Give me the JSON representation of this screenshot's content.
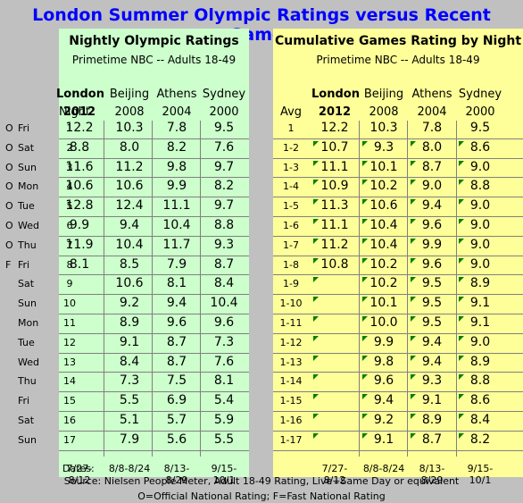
{
  "title": "London Summer Olympic Ratings versus Recent Games",
  "left_panel": {
    "title": "Nightly Olympic Ratings",
    "subtitle": "Primetime NBC -- Adults 18-49",
    "col_label": "Night",
    "headers": [
      {
        "line1": "London",
        "line2": "2012",
        "bold": true
      },
      {
        "line1": "Beijing",
        "line2": "2008",
        "bold": false
      },
      {
        "line1": "Athens",
        "line2": "2004",
        "bold": false
      },
      {
        "line1": "Sydney",
        "line2": "2000",
        "bold": false
      }
    ]
  },
  "right_panel": {
    "title": "Cumulative Games Rating by Night",
    "subtitle": "Primetime NBC -- Adults 18-49",
    "col_label": "Avg",
    "headers": [
      {
        "line1": "London",
        "line2": "2012",
        "bold": true
      },
      {
        "line1": "Beijing",
        "line2": "2008",
        "bold": false
      },
      {
        "line1": "Athens",
        "line2": "2004",
        "bold": false
      },
      {
        "line1": "Sydney",
        "line2": "2000",
        "bold": false
      }
    ]
  },
  "rows": [
    {
      "flag": "O",
      "day": "Fri",
      "night": "1",
      "n": [
        "12.2",
        "10.3",
        "7.8",
        "9.5"
      ],
      "avg": "1",
      "c": [
        "12.2",
        "10.3",
        "7.8",
        "9.5"
      ]
    },
    {
      "flag": "O",
      "day": "Sat",
      "night": "2",
      "n": [
        "8.8",
        "8.0",
        "8.2",
        "7.6"
      ],
      "avg": "1-2",
      "c": [
        "10.7",
        "9.3",
        "8.0",
        "8.6"
      ]
    },
    {
      "flag": "O",
      "day": "Sun",
      "night": "3",
      "n": [
        "11.6",
        "11.2",
        "9.8",
        "9.7"
      ],
      "avg": "1-3",
      "c": [
        "11.1",
        "10.1",
        "8.7",
        "9.0"
      ]
    },
    {
      "flag": "O",
      "day": "Mon",
      "night": "4",
      "n": [
        "10.6",
        "10.6",
        "9.9",
        "8.2"
      ],
      "avg": "1-4",
      "c": [
        "10.9",
        "10.2",
        "9.0",
        "8.8"
      ]
    },
    {
      "flag": "O",
      "day": "Tue",
      "night": "5",
      "n": [
        "12.8",
        "12.4",
        "11.1",
        "9.7"
      ],
      "avg": "1-5",
      "c": [
        "11.3",
        "10.6",
        "9.4",
        "9.0"
      ]
    },
    {
      "flag": "O",
      "day": "Wed",
      "night": "6",
      "n": [
        "9.9",
        "9.4",
        "10.4",
        "8.8"
      ],
      "avg": "1-6",
      "c": [
        "11.1",
        "10.4",
        "9.6",
        "9.0"
      ]
    },
    {
      "flag": "O",
      "day": "Thu",
      "night": "7",
      "n": [
        "11.9",
        "10.4",
        "11.7",
        "9.3"
      ],
      "avg": "1-7",
      "c": [
        "11.2",
        "10.4",
        "9.9",
        "9.0"
      ]
    },
    {
      "flag": "F",
      "day": "Fri",
      "night": "8",
      "n": [
        "8.1",
        "8.5",
        "7.9",
        "8.7"
      ],
      "avg": "1-8",
      "c": [
        "10.8",
        "10.2",
        "9.6",
        "9.0"
      ]
    },
    {
      "flag": "",
      "day": "Sat",
      "night": "9",
      "n": [
        "",
        "10.6",
        "8.1",
        "8.4"
      ],
      "avg": "1-9",
      "c": [
        "",
        "10.2",
        "9.5",
        "8.9"
      ]
    },
    {
      "flag": "",
      "day": "Sun",
      "night": "10",
      "n": [
        "",
        "9.2",
        "9.4",
        "10.4"
      ],
      "avg": "1-10",
      "c": [
        "",
        "10.1",
        "9.5",
        "9.1"
      ]
    },
    {
      "flag": "",
      "day": "Mon",
      "night": "11",
      "n": [
        "",
        "8.9",
        "9.6",
        "9.6"
      ],
      "avg": "1-11",
      "c": [
        "",
        "10.0",
        "9.5",
        "9.1"
      ]
    },
    {
      "flag": "",
      "day": "Tue",
      "night": "12",
      "n": [
        "",
        "9.1",
        "8.7",
        "7.3"
      ],
      "avg": "1-12",
      "c": [
        "",
        "9.9",
        "9.4",
        "9.0"
      ]
    },
    {
      "flag": "",
      "day": "Wed",
      "night": "13",
      "n": [
        "",
        "8.4",
        "8.7",
        "7.6"
      ],
      "avg": "1-13",
      "c": [
        "",
        "9.8",
        "9.4",
        "8.9"
      ]
    },
    {
      "flag": "",
      "day": "Thu",
      "night": "14",
      "n": [
        "",
        "7.3",
        "7.5",
        "8.1"
      ],
      "avg": "1-14",
      "c": [
        "",
        "9.6",
        "9.3",
        "8.8"
      ]
    },
    {
      "flag": "",
      "day": "Fri",
      "night": "15",
      "n": [
        "",
        "5.5",
        "6.9",
        "5.4"
      ],
      "avg": "1-15",
      "c": [
        "",
        "9.4",
        "9.1",
        "8.6"
      ]
    },
    {
      "flag": "",
      "day": "Sat",
      "night": "16",
      "n": [
        "",
        "5.1",
        "5.7",
        "5.9"
      ],
      "avg": "1-16",
      "c": [
        "",
        "9.2",
        "8.9",
        "8.4"
      ]
    },
    {
      "flag": "",
      "day": "Sun",
      "night": "17",
      "n": [
        "",
        "7.9",
        "5.6",
        "5.5"
      ],
      "avg": "1-17",
      "c": [
        "",
        "9.1",
        "8.7",
        "8.2"
      ]
    }
  ],
  "dates_label": "Dates:",
  "dates": [
    "7/27-8/12",
    "8/8-8/24",
    "8/13-8/29",
    "9/15-10/1"
  ],
  "source": "Source: Nielsen People Meter, Adult 18-49 Rating, Live+Same Day or equivalent",
  "legend": "O=Official National Rating; F=Fast National Rating",
  "colors": {
    "title": "#0000ff",
    "left_bg": "#ccffcc",
    "right_bg": "#ffff99",
    "page_bg": "#c0c0c0",
    "marker": "#008000"
  }
}
